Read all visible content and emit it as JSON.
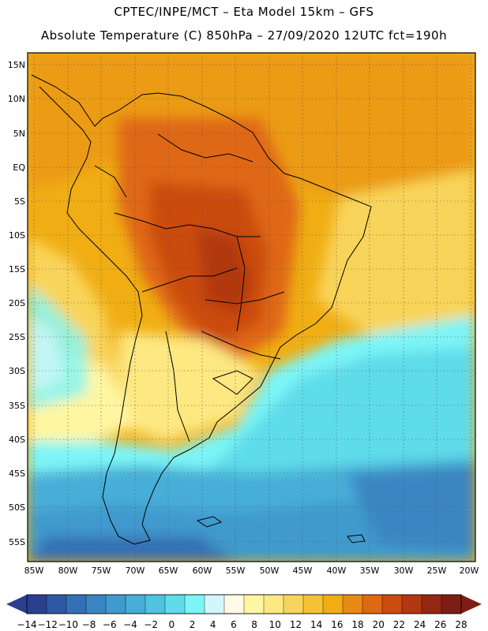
{
  "header": {
    "line1": "CPTEC/INPE/MCT –  Eta Model 15km – GFS",
    "line2": "Absolute Temperature (C) 850hPa – 27/09/2020 12UTC fct=190h"
  },
  "map": {
    "lat_labels": [
      "15N",
      "10N",
      "5N",
      "EQ",
      "5S",
      "10S",
      "15S",
      "20S",
      "25S",
      "30S",
      "35S",
      "40S",
      "45S",
      "50S",
      "55S"
    ],
    "lon_labels": [
      "85W",
      "80W",
      "75W",
      "70W",
      "65W",
      "60W",
      "55W",
      "50W",
      "45W",
      "40W",
      "35W",
      "30W",
      "25W",
      "20W"
    ],
    "grid": "dotted"
  },
  "colorbar": {
    "labels": [
      "-14",
      "-12",
      "-10",
      "-8",
      "-6",
      "-4",
      "-2",
      "0",
      "2",
      "4",
      "6",
      "8",
      "10",
      "12",
      "14",
      "16",
      "18",
      "20",
      "22",
      "24",
      "26",
      "28"
    ],
    "colors": [
      "#2b3f8f",
      "#2f58a3",
      "#3470b6",
      "#3a86c2",
      "#3f9acd",
      "#46aed7",
      "#4fc3e0",
      "#5fdcea",
      "#7df5f7",
      "#d4f6fb",
      "#fffbe6",
      "#fff6a2",
      "#fde882",
      "#f9d45a",
      "#f4c232",
      "#f0ae14",
      "#e88a16",
      "#df6812",
      "#cb4b10",
      "#b23810",
      "#952812",
      "#7d1d16"
    ]
  }
}
